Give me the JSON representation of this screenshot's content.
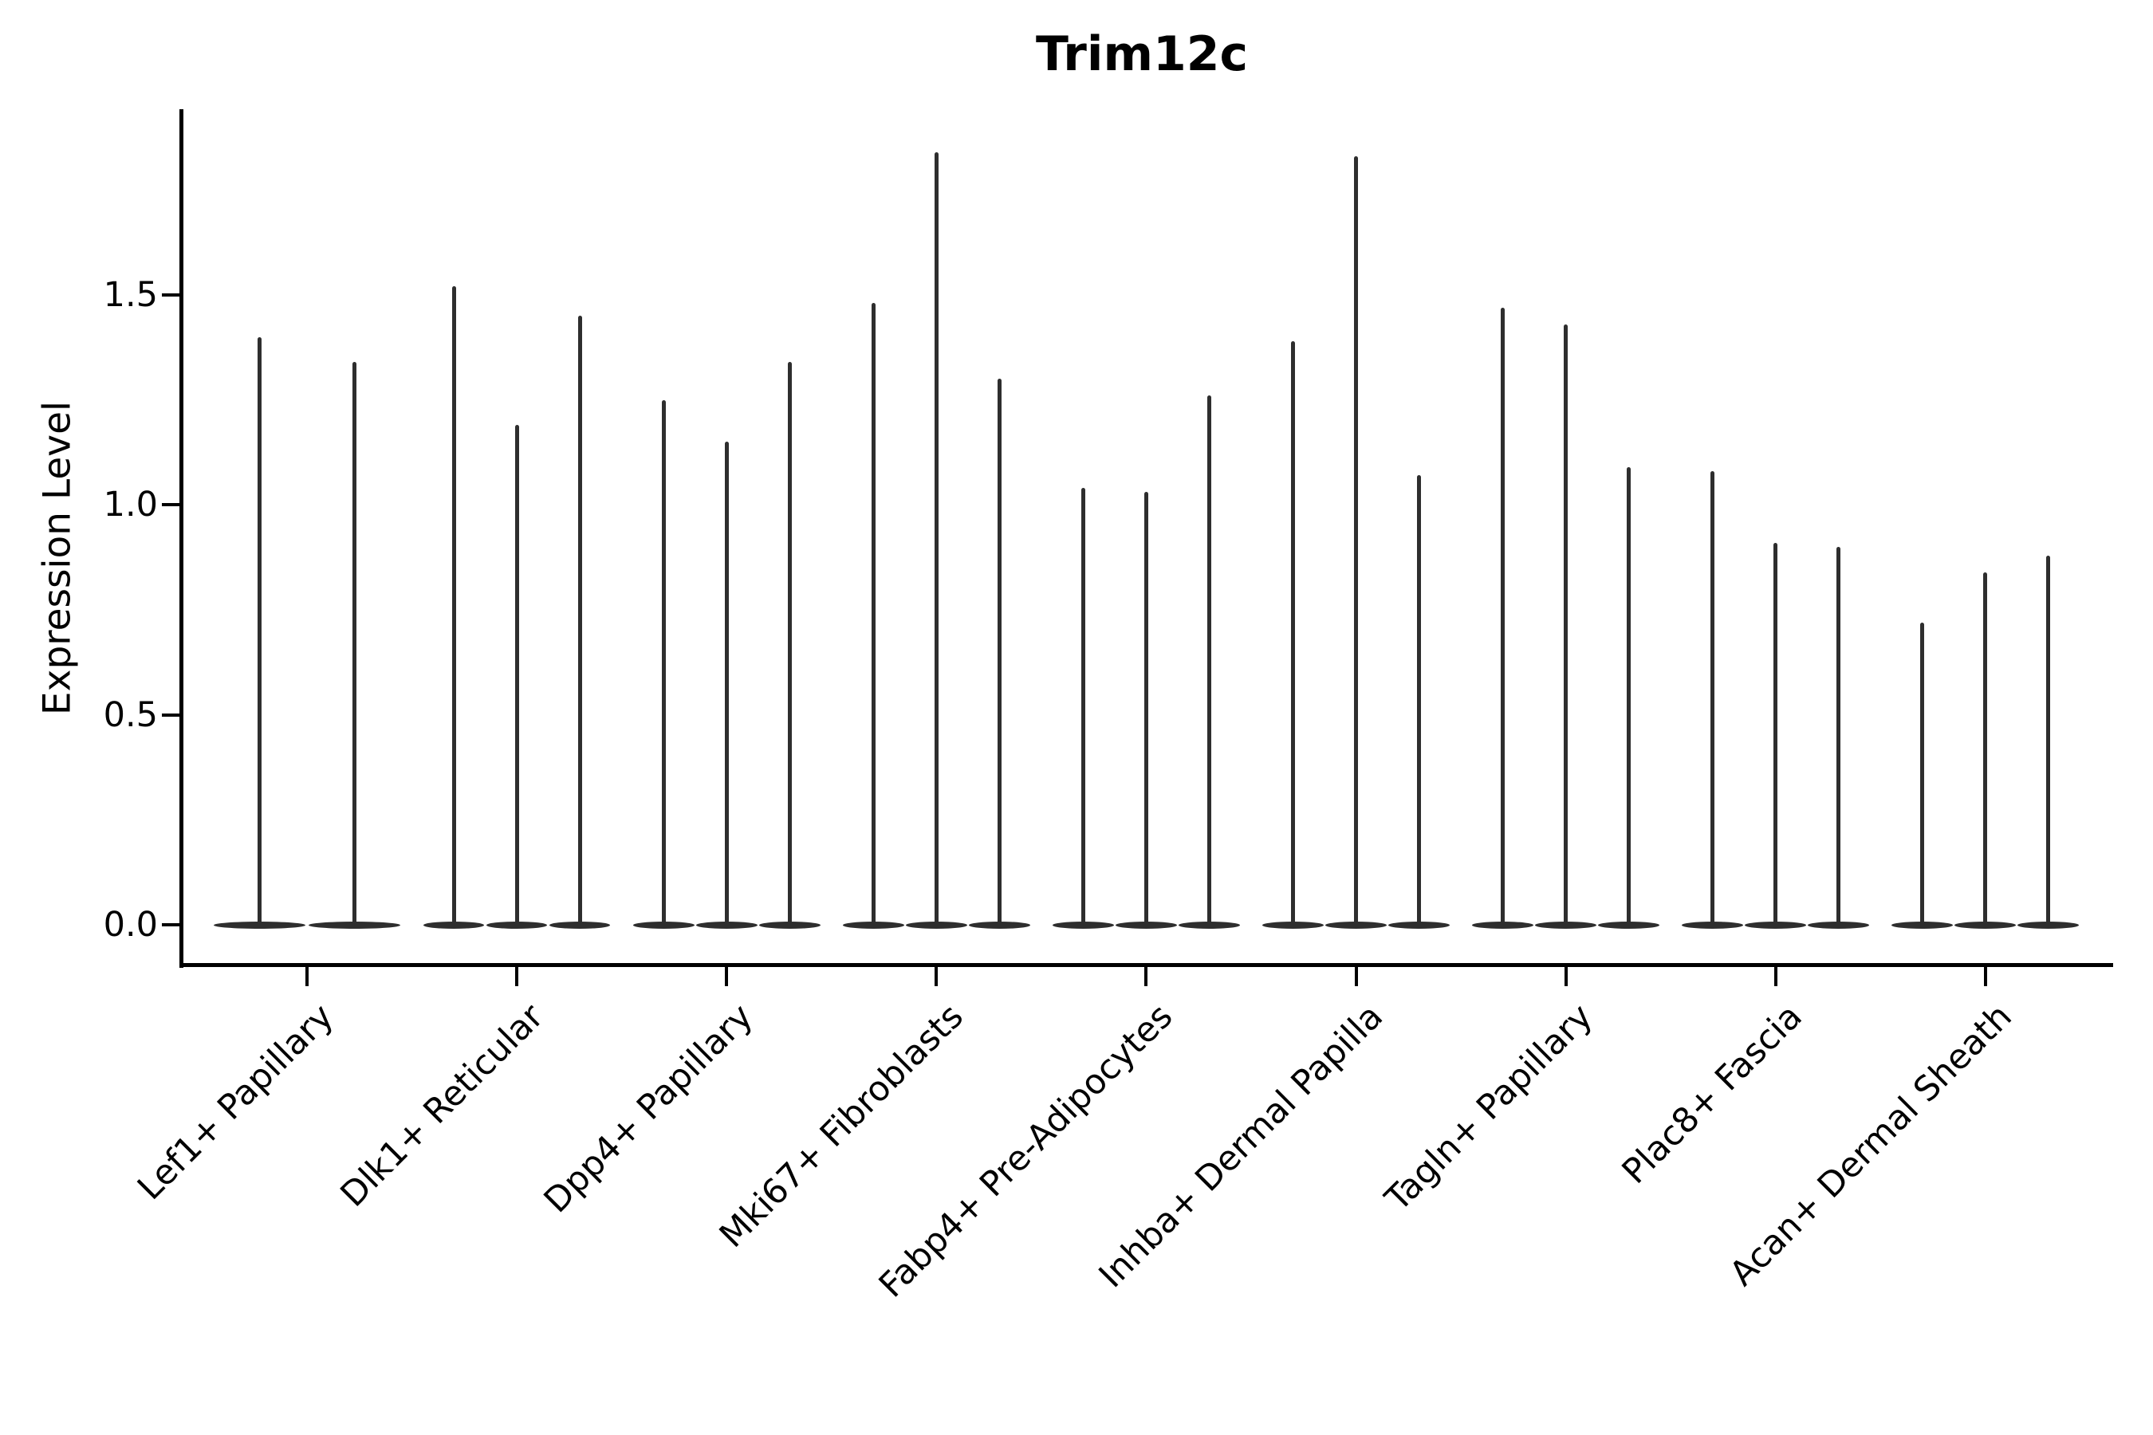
{
  "figure": {
    "background": "#ffffff"
  },
  "chart_data": {
    "type": "violin",
    "title": "Trim12c",
    "xlabel": "",
    "ylabel": "Expression Level",
    "categories": [
      "Lef1+ Papillary",
      "Dlk1+ Reticular",
      "Dpp4+ Papillary",
      "Mki67+ Fibroblasts",
      "Fabp4+ Pre-Adipocytes",
      "Inhba+ Dermal Papilla",
      "Tagln+ Papillary",
      "Plac8+ Fascia",
      "Acan+ Dermal Sheath"
    ],
    "groups": [
      {
        "category": "Lef1+ Papillary",
        "violin_max_values": [
          1.4,
          1.34
        ]
      },
      {
        "category": "Dlk1+ Reticular",
        "violin_max_values": [
          1.52,
          1.19,
          1.45
        ]
      },
      {
        "category": "Dpp4+ Papillary",
        "violin_max_values": [
          1.25,
          1.15,
          1.34
        ]
      },
      {
        "category": "Mki67+ Fibroblasts",
        "violin_max_values": [
          1.48,
          1.84,
          1.3
        ]
      },
      {
        "category": "Fabp4+ Pre-Adipocytes",
        "violin_max_values": [
          1.04,
          1.03,
          1.26
        ]
      },
      {
        "category": "Inhba+ Dermal Papilla",
        "violin_max_values": [
          1.39,
          1.83,
          1.07
        ]
      },
      {
        "category": "Tagln+ Papillary",
        "violin_max_values": [
          1.47,
          1.43,
          1.09
        ]
      },
      {
        "category": "Plac8+ Fascia",
        "violin_max_values": [
          1.08,
          0.91,
          0.9
        ]
      },
      {
        "category": "Acan+ Dermal Sheath",
        "violin_max_values": [
          0.72,
          0.84,
          0.88
        ]
      }
    ],
    "yticks": [
      0.0,
      0.5,
      1.0,
      1.5
    ],
    "ytick_labels": [
      "0.0",
      "0.5",
      "1.0",
      "1.5"
    ],
    "ylim": [
      -0.1,
      1.94
    ],
    "grid": false,
    "legend": "none",
    "violin_color": "#2e2e2e",
    "axis_color": "#000000",
    "note": "Sparse-expression violins: each violin collapses to a flat base at 0 with a thin vertical spike reaching its maximum expression value."
  }
}
